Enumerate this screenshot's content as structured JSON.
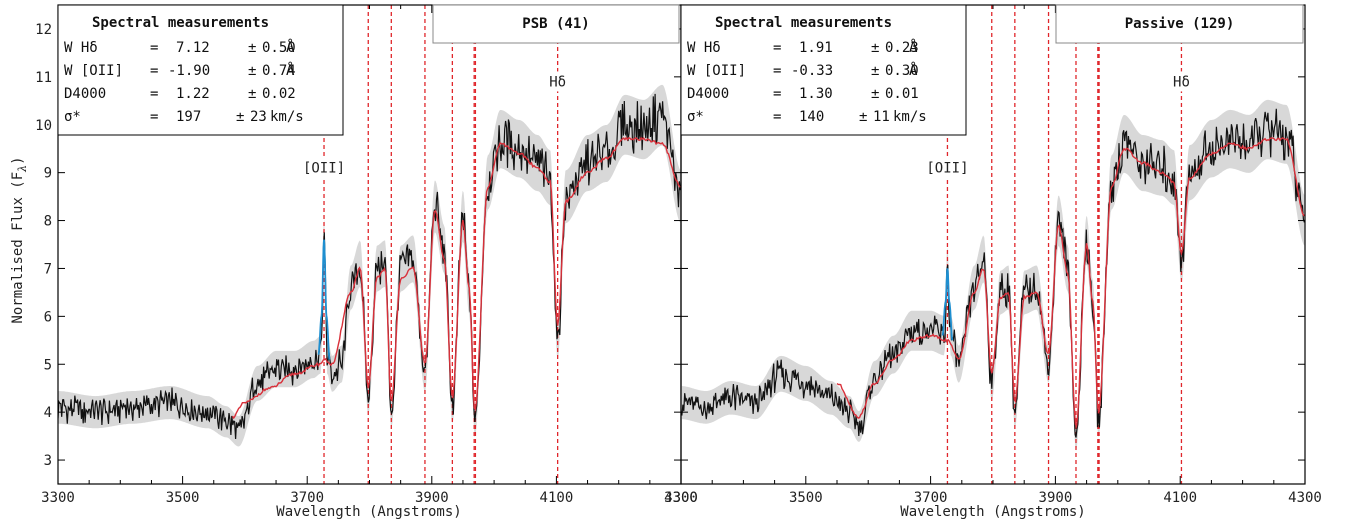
{
  "ylabel": "Normalised Flux (F",
  "ylabel_sub": "λ",
  "ylabel_close": ")",
  "xlabel": "Wavelength (Angstroms)",
  "colors": {
    "spectrum": "#111111",
    "model": "#d9303a",
    "emission": "#1f8fd0",
    "error_band": "#c8c8c8",
    "lines": "#e0262b"
  },
  "chart_data": [
    {
      "type": "line",
      "panel": "left",
      "tag": "PSB  (41)",
      "xlim": [
        3300,
        4300
      ],
      "ylim": [
        2.5,
        12.5
      ],
      "x_ticks": [
        3300,
        3500,
        3700,
        3900,
        4100,
        4300
      ],
      "y_ticks": [
        3,
        4,
        5,
        6,
        7,
        8,
        9,
        10,
        11,
        12
      ],
      "line_markers": [
        3727,
        3798,
        3835,
        3889,
        3933,
        3968,
        3970,
        4102
      ],
      "labels": [
        {
          "text": "[OII]",
          "x": 3727,
          "y": 9.0
        },
        {
          "text": "Hδ",
          "x": 4102,
          "y": 10.8
        }
      ],
      "measurements": {
        "title": "Spectral measurements",
        "rows": [
          {
            "name": "W Hδ",
            "eq": "=",
            "value": "7.12",
            "pm": "±",
            "err": "0.50",
            "unit": "Å"
          },
          {
            "name": "W [OII]",
            "eq": "=",
            "value": "-1.90",
            "pm": "±",
            "err": "0.74",
            "unit": "Å"
          },
          {
            "name": "D4000",
            "eq": "=",
            "value": "1.22",
            "pm": "±",
            "err": "0.02",
            "unit": ""
          },
          {
            "name": "σ*",
            "eq": "=",
            "value": "197",
            "pm": "±",
            "err": "23",
            "unit": "km/s"
          }
        ]
      },
      "spectrum_nodes": [
        [
          3300,
          4.1
        ],
        [
          3360,
          4.0
        ],
        [
          3420,
          4.1
        ],
        [
          3480,
          4.2
        ],
        [
          3540,
          4.0
        ],
        [
          3570,
          3.8
        ],
        [
          3590,
          3.6
        ],
        [
          3620,
          4.6
        ],
        [
          3650,
          4.9
        ],
        [
          3680,
          4.9
        ],
        [
          3710,
          5.1
        ],
        [
          3722,
          5.2
        ],
        [
          3727,
          7.6
        ],
        [
          3732,
          5.2
        ],
        [
          3740,
          4.8
        ],
        [
          3755,
          5.0
        ],
        [
          3770,
          6.6
        ],
        [
          3785,
          7.1
        ],
        [
          3798,
          4.3
        ],
        [
          3812,
          7.0
        ],
        [
          3825,
          7.1
        ],
        [
          3835,
          4.0
        ],
        [
          3850,
          7.0
        ],
        [
          3870,
          7.2
        ],
        [
          3889,
          4.8
        ],
        [
          3905,
          8.3
        ],
        [
          3920,
          7.4
        ],
        [
          3933,
          4.1
        ],
        [
          3950,
          8.1
        ],
        [
          3960,
          6.5
        ],
        [
          3969,
          3.8
        ],
        [
          3990,
          8.8
        ],
        [
          4010,
          9.7
        ],
        [
          4040,
          9.5
        ],
        [
          4070,
          9.2
        ],
        [
          4090,
          8.9
        ],
        [
          4102,
          5.5
        ],
        [
          4115,
          8.5
        ],
        [
          4150,
          9.2
        ],
        [
          4180,
          9.4
        ],
        [
          4210,
          10.0
        ],
        [
          4240,
          9.9
        ],
        [
          4270,
          10.2
        ],
        [
          4300,
          8.5
        ]
      ],
      "model_nodes": [
        [
          3580,
          3.9
        ],
        [
          3600,
          4.2
        ],
        [
          3640,
          4.5
        ],
        [
          3680,
          4.8
        ],
        [
          3720,
          5.0
        ],
        [
          3727,
          5.1
        ],
        [
          3740,
          5.0
        ],
        [
          3770,
          6.5
        ],
        [
          3785,
          7.0
        ],
        [
          3798,
          4.5
        ],
        [
          3812,
          6.8
        ],
        [
          3825,
          7.0
        ],
        [
          3835,
          4.2
        ],
        [
          3850,
          6.8
        ],
        [
          3870,
          7.0
        ],
        [
          3889,
          5.0
        ],
        [
          3905,
          8.2
        ],
        [
          3920,
          7.2
        ],
        [
          3933,
          4.3
        ],
        [
          3950,
          8.0
        ],
        [
          3960,
          6.6
        ],
        [
          3969,
          4.0
        ],
        [
          3990,
          8.7
        ],
        [
          4010,
          9.6
        ],
        [
          4040,
          9.4
        ],
        [
          4070,
          9.1
        ],
        [
          4090,
          8.8
        ],
        [
          4102,
          5.8
        ],
        [
          4115,
          8.4
        ],
        [
          4150,
          9.0
        ],
        [
          4180,
          9.3
        ],
        [
          4210,
          9.7
        ],
        [
          4240,
          9.7
        ],
        [
          4270,
          9.6
        ],
        [
          4300,
          8.7
        ]
      ],
      "emission_nodes": [
        [
          3718,
          5.2
        ],
        [
          3723,
          6.0
        ],
        [
          3727,
          7.6
        ],
        [
          3731,
          6.0
        ],
        [
          3736,
          5.1
        ]
      ]
    },
    {
      "type": "line",
      "panel": "right",
      "tag": "Passive  (129)",
      "xlim": [
        3300,
        4300
      ],
      "ylim": [
        2.5,
        12.5
      ],
      "x_ticks": [
        3300,
        3500,
        3700,
        3900,
        4100,
        4300
      ],
      "y_ticks": [
        3,
        4,
        5,
        6,
        7,
        8,
        9,
        10,
        11,
        12
      ],
      "line_markers": [
        3727,
        3798,
        3835,
        3889,
        3933,
        3968,
        3970,
        4102
      ],
      "labels": [
        {
          "text": "[OII]",
          "x": 3727,
          "y": 9.0
        },
        {
          "text": "Hδ",
          "x": 4102,
          "y": 10.8
        }
      ],
      "measurements": {
        "title": "Spectral measurements",
        "rows": [
          {
            "name": "W Hδ",
            "eq": "=",
            "value": "1.91",
            "pm": "±",
            "err": "0.23",
            "unit": "Å"
          },
          {
            "name": "W [OII]",
            "eq": "=",
            "value": "-0.33",
            "pm": "±",
            "err": "0.30",
            "unit": "Å"
          },
          {
            "name": "D4000",
            "eq": "=",
            "value": "1.30",
            "pm": "±",
            "err": "0.01",
            "unit": ""
          },
          {
            "name": "σ*",
            "eq": "=",
            "value": "140",
            "pm": "±",
            "err": "11",
            "unit": "km/s"
          }
        ]
      },
      "spectrum_nodes": [
        [
          3300,
          4.2
        ],
        [
          3340,
          4.1
        ],
        [
          3380,
          4.3
        ],
        [
          3420,
          4.2
        ],
        [
          3460,
          4.8
        ],
        [
          3500,
          4.6
        ],
        [
          3540,
          4.3
        ],
        [
          3570,
          4.0
        ],
        [
          3585,
          3.7
        ],
        [
          3610,
          4.7
        ],
        [
          3640,
          5.2
        ],
        [
          3670,
          5.7
        ],
        [
          3700,
          5.7
        ],
        [
          3722,
          5.6
        ],
        [
          3727,
          7.0
        ],
        [
          3732,
          5.6
        ],
        [
          3745,
          5.0
        ],
        [
          3770,
          6.6
        ],
        [
          3785,
          7.2
        ],
        [
          3798,
          4.6
        ],
        [
          3812,
          6.5
        ],
        [
          3825,
          6.6
        ],
        [
          3835,
          4.0
        ],
        [
          3850,
          6.5
        ],
        [
          3870,
          6.6
        ],
        [
          3889,
          5.0
        ],
        [
          3905,
          8.0
        ],
        [
          3920,
          7.0
        ],
        [
          3933,
          3.5
        ],
        [
          3950,
          7.6
        ],
        [
          3960,
          6.3
        ],
        [
          3969,
          3.8
        ],
        [
          3990,
          8.8
        ],
        [
          4010,
          9.6
        ],
        [
          4040,
          9.2
        ],
        [
          4070,
          9.1
        ],
        [
          4090,
          8.9
        ],
        [
          4102,
          7.2
        ],
        [
          4115,
          9.0
        ],
        [
          4150,
          9.5
        ],
        [
          4180,
          9.7
        ],
        [
          4210,
          9.6
        ],
        [
          4240,
          9.9
        ],
        [
          4270,
          9.8
        ],
        [
          4300,
          8.0
        ]
      ],
      "model_nodes": [
        [
          3550,
          4.6
        ],
        [
          3585,
          3.9
        ],
        [
          3610,
          4.6
        ],
        [
          3640,
          5.1
        ],
        [
          3670,
          5.5
        ],
        [
          3700,
          5.6
        ],
        [
          3727,
          5.5
        ],
        [
          3745,
          5.1
        ],
        [
          3770,
          6.5
        ],
        [
          3785,
          7.0
        ],
        [
          3798,
          4.8
        ],
        [
          3812,
          6.4
        ],
        [
          3825,
          6.5
        ],
        [
          3835,
          4.2
        ],
        [
          3850,
          6.4
        ],
        [
          3870,
          6.5
        ],
        [
          3889,
          5.2
        ],
        [
          3905,
          7.9
        ],
        [
          3920,
          6.9
        ],
        [
          3933,
          3.7
        ],
        [
          3950,
          7.5
        ],
        [
          3960,
          6.3
        ],
        [
          3969,
          4.0
        ],
        [
          3990,
          8.7
        ],
        [
          4010,
          9.5
        ],
        [
          4040,
          9.2
        ],
        [
          4070,
          9.0
        ],
        [
          4090,
          8.8
        ],
        [
          4102,
          7.3
        ],
        [
          4115,
          8.9
        ],
        [
          4150,
          9.4
        ],
        [
          4180,
          9.6
        ],
        [
          4210,
          9.5
        ],
        [
          4240,
          9.7
        ],
        [
          4270,
          9.7
        ],
        [
          4300,
          8.1
        ]
      ],
      "emission_nodes": [
        [
          3719,
          5.6
        ],
        [
          3724,
          6.3
        ],
        [
          3727,
          7.0
        ],
        [
          3730,
          6.3
        ],
        [
          3735,
          5.5
        ]
      ]
    }
  ]
}
